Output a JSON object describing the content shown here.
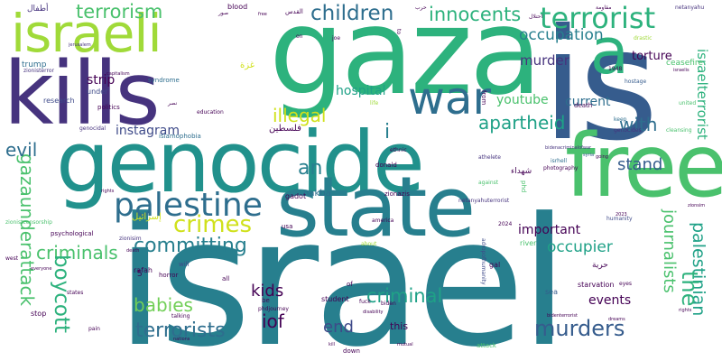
{
  "words": [
    "israel",
    "gaza",
    "is",
    "genocide",
    "state",
    "free",
    "kills",
    "israeli",
    "war",
    "a",
    "palestine",
    "terrorist",
    "children",
    "innocents",
    "terrorism",
    "occupation",
    "apartheid",
    "committing",
    "crimes",
    "criminals",
    "boycott",
    "gazaunderattack",
    "babies",
    "terrorists",
    "murders",
    "journalists",
    "palestinian",
    "the",
    "israelterrorist",
    "criminal",
    "kids",
    "iof",
    "end",
    "illegal",
    "an",
    "i",
    "with",
    "evil",
    "instagram",
    "hospital",
    "murder",
    "strip",
    "youtube",
    "current",
    "important",
    "occupier",
    "events",
    "stand",
    "nakba",
    "torture",
    "ceasefire",
    "netanyahu",
    "hostage",
    "blood",
    "trump",
    "zionisterror",
    "jerusalem",
    "research",
    "politics",
    "syndrome",
    "under",
    "education",
    "islamophobia",
    "genocidal",
    "ethnic",
    "donald",
    "isrhell",
    "photography",
    "against",
    "cleansing",
    "genocides",
    "keep",
    "death",
    "bidenacriminalofwar",
    "athelete",
    "going",
    "syria",
    "humanity",
    "america",
    "2024",
    "gal",
    "gadot",
    "usa",
    "zionazis",
    "psychological",
    "zionisim",
    "zionsim",
    "rafah",
    "horror",
    "will",
    "all",
    "stop",
    "talking",
    "be",
    "phdjourney",
    "student",
    "fuck",
    "biden",
    "bidenterrorist",
    "river",
    "sea",
    "starvation",
    "adropofhumanity",
    "of",
    "this",
    "down",
    "attack",
    "united",
    "rights",
    "eyes",
    "netanyahuterrorist",
    "mutual",
    "2023",
    "phd",
    "5",
    "to",
    "disability",
    "from",
    "pain",
    "west",
    "everyone",
    "states",
    "on",
    "joe",
    "capitalism",
    "1948",
    "zionistcensorship",
    "about",
    "life",
    "israelis",
    "nations",
    "free",
    "drastic",
    "kill",
    "dreams",
    "death",
    "rights",
    "أطفال",
    "القدس",
    "غزة",
    "فلسطين",
    "إسرائيل",
    "شهداء",
    "حرية",
    "مقاومة",
    "احتلال",
    "حرب",
    "صور",
    "نصر"
  ],
  "colors": {
    "purple": "#46337e",
    "indigo": "#3e4a89",
    "blue": "#365c8d",
    "steel": "#2e6e8e",
    "teal": "#277f8e",
    "cyan": "#21918c",
    "sea": "#1fa187",
    "green": "#2db27d",
    "lime": "#4ac16d",
    "grass": "#71cf57",
    "yellowgreen": "#a0da39",
    "yellow": "#d0e11c",
    "darkpurple": "#440154"
  }
}
